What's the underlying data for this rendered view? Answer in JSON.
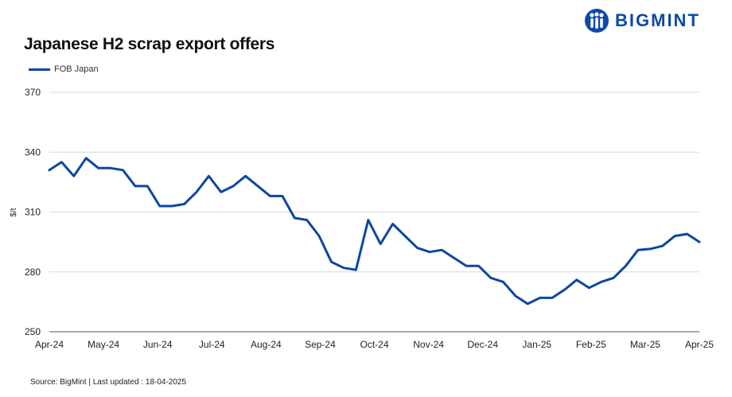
{
  "brand": {
    "name": "BIGMINT",
    "icon": "bigmint-logo-icon"
  },
  "source_text": "Source: BigMint | Last updated : 18-04-2025",
  "chart_data": {
    "type": "line",
    "title": "Japanese H2 scrap export offers",
    "xlabel": "",
    "ylabel": "$/t",
    "ylim": [
      250,
      370
    ],
    "yticks": [
      250,
      280,
      310,
      340,
      370
    ],
    "grid": true,
    "legend_position": "top-left",
    "x_tick_labels": [
      "Apr-24",
      "May-24",
      "Jun-24",
      "Jul-24",
      "Aug-24",
      "Sep-24",
      "Oct-24",
      "Nov-24",
      "Dec-24",
      "Jan-25",
      "Feb-25",
      "Mar-25",
      "Apr-25"
    ],
    "series": [
      {
        "name": "FOB Japan",
        "color": "#0d47a1",
        "values": [
          331,
          335,
          328,
          337,
          332,
          332,
          331,
          323,
          323,
          313,
          313,
          314,
          320,
          328,
          320,
          323,
          328,
          323,
          318,
          318,
          307,
          306,
          298,
          285,
          282,
          281,
          306,
          294,
          304,
          298,
          292,
          290,
          291,
          287,
          283,
          283,
          277,
          275,
          268,
          264,
          267,
          267,
          271,
          276,
          272,
          275,
          277,
          283,
          291,
          291.5,
          293,
          298,
          299,
          295
        ]
      }
    ]
  }
}
